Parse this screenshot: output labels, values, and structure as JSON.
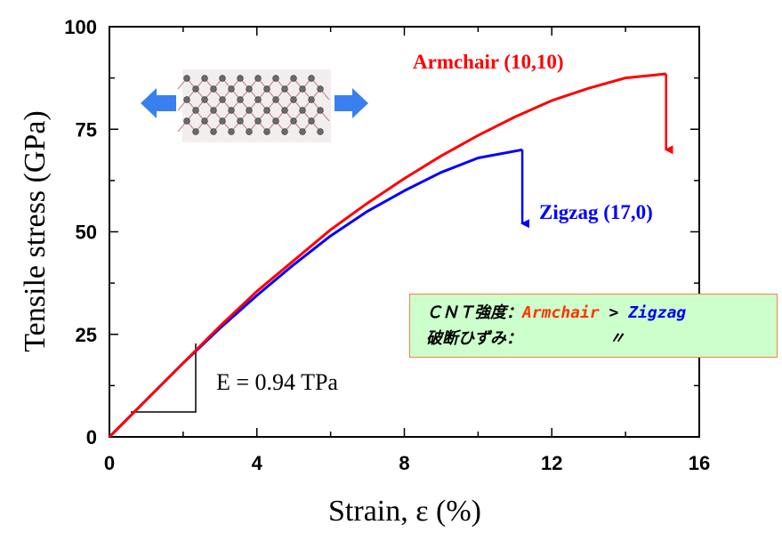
{
  "chart_data": {
    "type": "line",
    "xlabel": "Strain, ε (%)",
    "ylabel": "Tensile stress (GPa)",
    "xlim": [
      0,
      16
    ],
    "ylim": [
      0,
      100
    ],
    "x_ticks": [
      "0",
      "4",
      "8",
      "12",
      "16"
    ],
    "y_ticks": [
      "0",
      "25",
      "50",
      "75",
      "100"
    ],
    "series": [
      {
        "name": "Armchair (10,10)",
        "color": "#ff0000",
        "x": [
          0,
          1,
          2,
          3,
          4,
          5,
          6,
          7,
          8,
          9,
          10,
          11,
          12,
          13,
          14,
          15.1
        ],
        "y": [
          0,
          9,
          18,
          27,
          35.5,
          43,
          50.5,
          57,
          63,
          68.5,
          73.5,
          78,
          82,
          85,
          87.5,
          88.5
        ],
        "fracture_arrow_to": 70
      },
      {
        "name": "Zigzag (17,0)",
        "color": "#0000ff",
        "x": [
          0,
          1,
          2,
          3,
          4,
          5,
          6,
          7,
          8,
          9,
          10,
          11.2
        ],
        "y": [
          0,
          9,
          18,
          26.5,
          34.5,
          42,
          49,
          55,
          60,
          64.5,
          68,
          70
        ],
        "fracture_arrow_to": 52
      }
    ],
    "annotations": {
      "modulus": "E = 0.94 TPa"
    }
  },
  "info_box": {
    "line1_prefix": "ＣＮＴ強度：",
    "line1_armchair": "Armchair",
    "line1_gt": " > ",
    "line1_zigzag": "Zigzag",
    "line2_prefix": "破断ひずみ：",
    "line2_ditto": "         〃"
  },
  "illustration": {
    "name": "carbon-nanotube-tension-illustration",
    "arrow_color": "#3a7fef"
  }
}
